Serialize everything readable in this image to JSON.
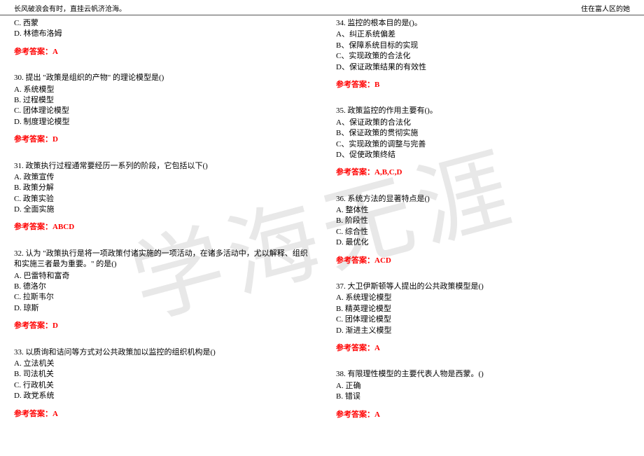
{
  "header": {
    "left": "长风破浪会有时，直挂云帆济沧海。",
    "right": "住在富人区的她"
  },
  "watermark": "学海无涯",
  "colors": {
    "answer": "#ff0000",
    "text": "#000000",
    "divider": "#555555",
    "watermark": "#e8e8e8",
    "background": "#ffffff"
  },
  "leftColumn": {
    "tail": {
      "options": [
        "C. 西蒙",
        "D. 林德布洛姆"
      ],
      "answer": "参考答案：A"
    },
    "questions": [
      {
        "stem": "30. 提出 \"政策是组织的产物\" 的理论模型是()",
        "options": [
          "A. 系统模型",
          "B. 过程模型",
          "C. 团体理论模型",
          "D. 制度理论模型"
        ],
        "answer": "参考答案：D"
      },
      {
        "stem": "31. 政策执行过程通常要经历一系列的阶段，它包括以下()",
        "options": [
          "A. 政策宣传",
          "B. 政策分解",
          "C. 政策实验",
          "D. 全面实施"
        ],
        "answer": "参考答案：ABCD"
      },
      {
        "stem": "32. 认为 \"政策执行是将一项政策付诸实施的一项活动，在诸多活动中，尤以解释、组织和实施三者最为重要。\" 的是()",
        "options": [
          "A. 巴雷特和富奇",
          "B. 德洛尔",
          "C. 拉斯韦尔",
          "D. 琼斯"
        ],
        "answer": "参考答案：D"
      },
      {
        "stem": "33. 以质询和诘问等方式对公共政策加以监控的组织机构是()",
        "options": [
          "A. 立法机关",
          "B. 司法机关",
          "C. 行政机关",
          "D. 政党系统"
        ],
        "answer": "参考答案：A"
      }
    ]
  },
  "rightColumn": {
    "questions": [
      {
        "stem": "34. 监控的根本目的是()。",
        "options": [
          "A、纠正系统偏差",
          "B、保障系统目标的实现",
          "C、实现政策的合法化",
          "D、保证政策结果的有效性"
        ],
        "answer": "参考答案：B"
      },
      {
        "stem": "35. 政策监控的作用主要有()。",
        "options": [
          "A、保证政策的合法化",
          "B、保证政策的贯彻实施",
          "C、实现政策的调整与完善",
          "D、促使政策终结"
        ],
        "answer": "参考答案：A,B,C,D"
      },
      {
        "stem": "36. 系统方法的显著特点是()",
        "options": [
          "A. 整体性",
          "B. 阶段性",
          "C. 综合性",
          "D. 最优化"
        ],
        "answer": "参考答案：ACD"
      },
      {
        "stem": "37. 大卫伊斯顿等人提出的公共政策模型是()",
        "options": [
          "A. 系统理论模型",
          "B. 精英理论模型",
          "C. 团体理论模型",
          "D. 渐进主义模型"
        ],
        "answer": "参考答案：A"
      },
      {
        "stem": "38. 有限理性模型的主要代表人物是西蒙。()",
        "options": [
          "A. 正确",
          "B. 错误"
        ],
        "answer": "参考答案：A"
      }
    ]
  }
}
